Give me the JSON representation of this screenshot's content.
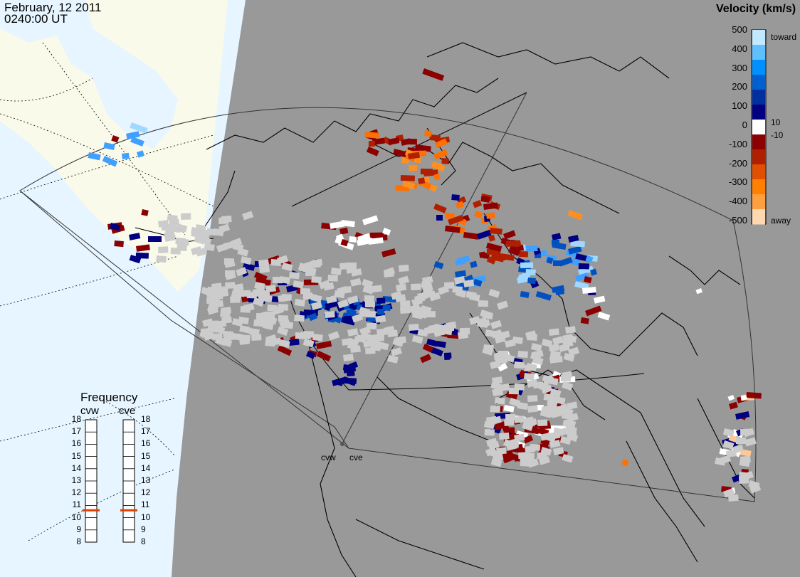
{
  "header": {
    "date": "February, 12 2011",
    "time": "0240:00 UT"
  },
  "colorbar": {
    "title": "Velocity (km/s)",
    "ticks": [
      "500",
      "400",
      "300",
      "200",
      "100",
      "0",
      "-100",
      "-200",
      "-300",
      "-400",
      "-500"
    ],
    "inner_ticks": [
      "10",
      "-10"
    ],
    "toward_label": "toward",
    "away_label": "away",
    "colors": [
      "#ffd8b0",
      "#ffa040",
      "#ff8000",
      "#e05000",
      "#b02000",
      "#8b0000",
      "#ffffff",
      "#000080",
      "#0030a0",
      "#0060d0",
      "#0090ff",
      "#60c0ff",
      "#c0e8ff"
    ]
  },
  "frequency_panel": {
    "title": "Frequency",
    "radars": [
      {
        "code": "cvw",
        "frequency_mhz": 10.6
      },
      {
        "code": "cve",
        "frequency_mhz": 10.6
      }
    ],
    "scale": [
      "18",
      "17",
      "16",
      "15",
      "14",
      "13",
      "12",
      "11",
      "10",
      "9",
      "8"
    ],
    "indicator_color": "#e04000"
  },
  "radar_sites": [
    {
      "code": "cvw"
    },
    {
      "code": "cve"
    }
  ],
  "map_colors": {
    "ocean": "#e6f5ff",
    "land_outside": "#fafaea",
    "night_side": "#999999",
    "ground_scatter": "#cccccc"
  }
}
